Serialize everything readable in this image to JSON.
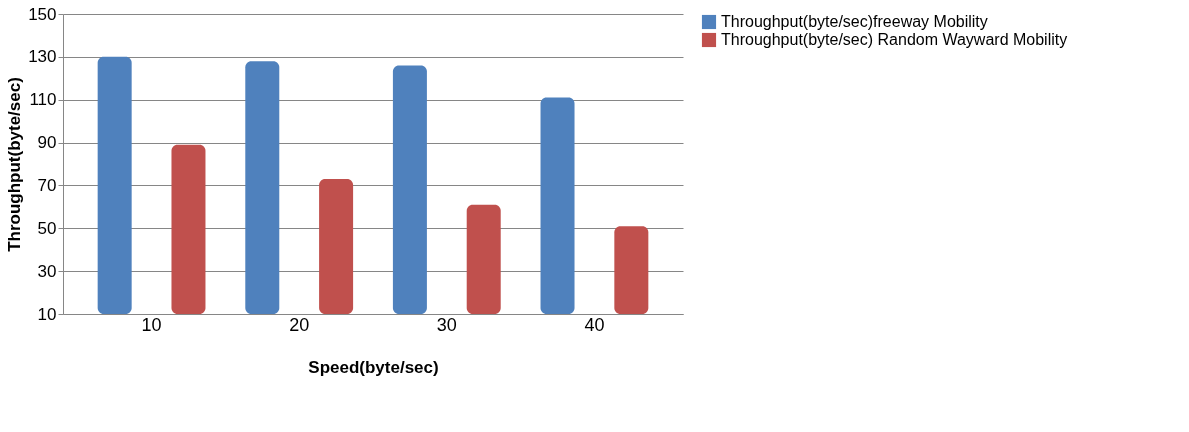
{
  "chart_data": {
    "type": "bar",
    "xlabel": "Speed(byte/sec)",
    "ylabel": "Throughput(byte/sec)",
    "categories": [
      "10",
      "20",
      "30",
      "40"
    ],
    "series": [
      {
        "name": "Throughput(byte/sec)freeway Mobility",
        "color": "#4f81bd",
        "values": [
          130,
          128,
          126,
          111
        ]
      },
      {
        "name": "Throughput(byte/sec) Random Wayward Mobility",
        "color": "#c0504d",
        "values": [
          89,
          73,
          61,
          51
        ]
      }
    ],
    "ylim": [
      10,
      150
    ],
    "yticks": [
      10,
      30,
      50,
      70,
      90,
      110,
      130,
      150
    ],
    "grid": "y",
    "legend": "right"
  }
}
